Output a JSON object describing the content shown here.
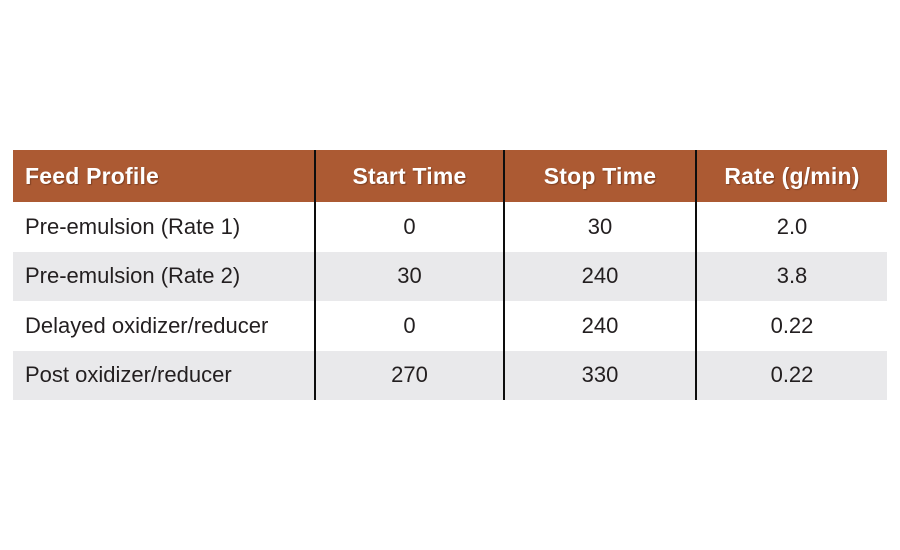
{
  "chart_data": {
    "type": "table",
    "columns": [
      "Feed Profile",
      "Start Time",
      "Stop Time",
      "Rate (g/min)"
    ],
    "rows": [
      [
        "Pre-emulsion (Rate 1)",
        "0",
        "30",
        "2.0"
      ],
      [
        "Pre-emulsion (Rate 2)",
        "30",
        "240",
        "3.8"
      ],
      [
        "Delayed oxidizer/reducer",
        "0",
        "240",
        "0.22"
      ],
      [
        "Post oxidizer/reducer",
        "270",
        "330",
        "0.22"
      ]
    ],
    "layout": {
      "striped_rows": true,
      "column_alignment": [
        "left",
        "center",
        "center",
        "center"
      ]
    }
  },
  "colors": {
    "header_bg": "#ac5a33",
    "header_text": "#ffffff",
    "row_bg": "#ffffff",
    "row_alt_bg": "#e9e9eb",
    "body_text": "#231f20",
    "column_divider": "#0d0d0d",
    "page_bg": "#ffffff"
  }
}
